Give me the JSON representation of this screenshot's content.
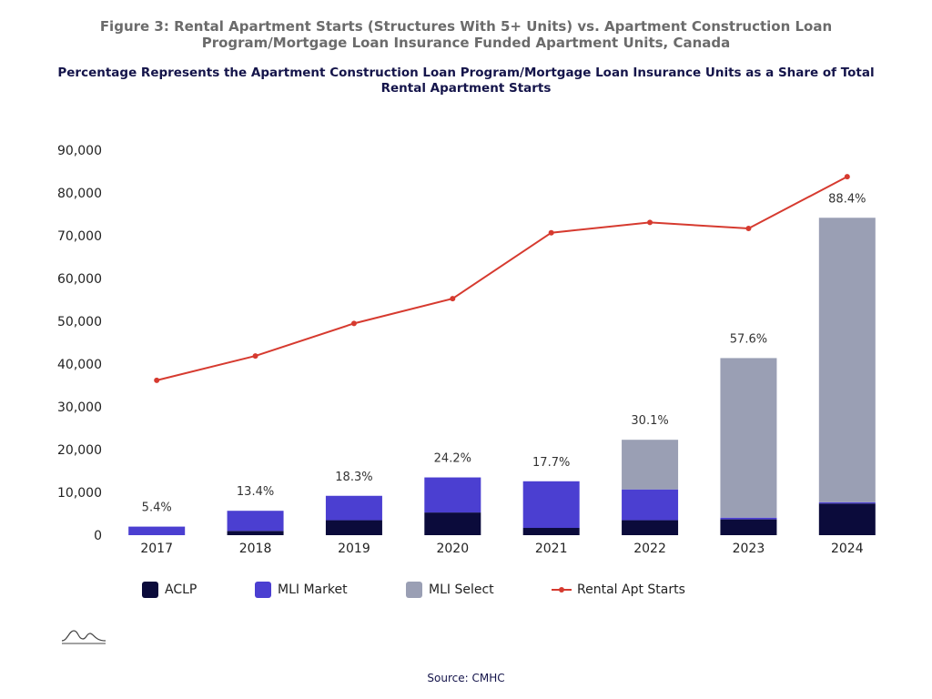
{
  "figure_title": "Figure 3: Rental Apartment Starts (Structures With 5+ Units) vs. Apartment Construction Loan Program/Mortgage Loan Insurance Funded Apartment Units, Canada",
  "source": "Source: CMHC",
  "logo_icon": "cmhc-logo-icon",
  "chart_data": {
    "type": "bar",
    "stacked": true,
    "title": "Percentage Represents the Apartment Construction Loan Program/Mortgage Loan Insurance Units as a Share of Total Rental Apartment Starts",
    "xlabel": "",
    "ylabel": "",
    "ylim": [
      0,
      90000
    ],
    "yticks": [
      0,
      10000,
      20000,
      30000,
      40000,
      50000,
      60000,
      70000,
      80000,
      90000
    ],
    "ytick_labels": [
      "0",
      "10,000",
      "20,000",
      "30,000",
      "40,000",
      "50,000",
      "60,000",
      "70,000",
      "80,000",
      "90,000"
    ],
    "grid": false,
    "legend_position": "bottom",
    "categories": [
      "2017",
      "2018",
      "2019",
      "2020",
      "2021",
      "2022",
      "2023",
      "2024"
    ],
    "series": [
      {
        "name": "ACLP",
        "type": "bar",
        "color": "#0b0b3b",
        "values": [
          0,
          1000,
          3500,
          5300,
          1700,
          3500,
          3700,
          7400
        ]
      },
      {
        "name": "MLI Market",
        "type": "bar",
        "color": "#4b3fd1",
        "values": [
          2000,
          4700,
          5700,
          8200,
          10900,
          7200,
          400,
          300
        ]
      },
      {
        "name": "MLI Select",
        "type": "bar",
        "color": "#9a9fb4",
        "values": [
          0,
          0,
          0,
          0,
          0,
          11600,
          37300,
          66500
        ]
      },
      {
        "name": "Rental Apt Starts",
        "type": "line",
        "color": "#d63a2f",
        "values": [
          36200,
          41900,
          49500,
          55300,
          70700,
          73100,
          71700,
          83800
        ]
      }
    ],
    "annotations": [
      "5.4%",
      "13.4%",
      "18.3%",
      "24.2%",
      "17.7%",
      "30.1%",
      "57.6%",
      "88.4%"
    ]
  }
}
